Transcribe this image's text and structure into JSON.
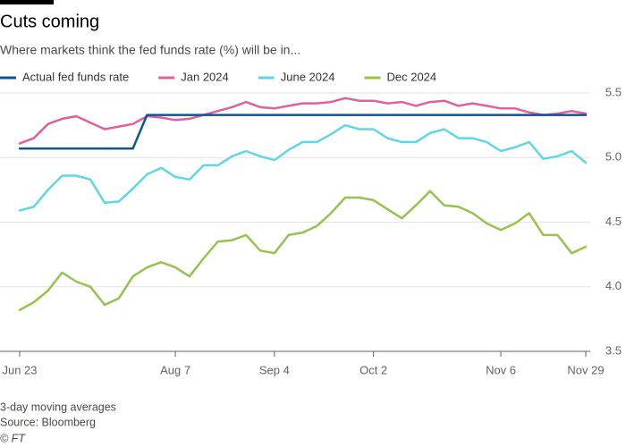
{
  "chart_data": {
    "type": "line",
    "title": "Cuts coming",
    "subtitle": "Where markets think the fed funds rate (%) will be in...",
    "notes": [
      "3-day moving averages",
      "Source: Bloomberg"
    ],
    "credit": "© FT",
    "categories": [
      "Jun 23",
      null,
      null,
      null,
      null,
      null,
      null,
      null,
      null,
      null,
      null,
      "Aug 7",
      null,
      null,
      null,
      null,
      null,
      null,
      "Sep 4",
      null,
      null,
      null,
      null,
      null,
      null,
      "Oct 2",
      null,
      null,
      null,
      null,
      null,
      null,
      null,
      null,
      "Nov 6",
      null,
      null,
      null,
      null,
      null,
      "Nov 29"
    ],
    "series": [
      {
        "name": "Actual fed funds rate",
        "color": "#0f5499",
        "values": [
          5.07,
          5.07,
          5.07,
          5.07,
          5.07,
          5.07,
          5.07,
          5.07,
          5.07,
          5.33,
          5.33,
          5.33,
          5.33,
          5.33,
          5.33,
          5.33,
          5.33,
          5.33,
          5.33,
          5.33,
          5.33,
          5.33,
          5.33,
          5.33,
          5.33,
          5.33,
          5.33,
          5.33,
          5.33,
          5.33,
          5.33,
          5.33,
          5.33,
          5.33,
          5.33,
          5.33,
          5.33,
          5.33,
          5.33,
          5.33,
          5.33
        ]
      },
      {
        "name": "Jan 2024",
        "color": "#e0609a",
        "values": [
          5.11,
          5.15,
          5.26,
          5.3,
          5.32,
          5.27,
          5.22,
          5.24,
          5.26,
          5.32,
          5.31,
          5.29,
          5.3,
          5.33,
          5.36,
          5.39,
          5.43,
          5.39,
          5.38,
          5.4,
          5.42,
          5.42,
          5.43,
          5.46,
          5.44,
          5.44,
          5.42,
          5.43,
          5.4,
          5.43,
          5.44,
          5.4,
          5.42,
          5.4,
          5.38,
          5.38,
          5.35,
          5.33,
          5.34,
          5.36,
          5.34
        ]
      },
      {
        "name": "June 2024",
        "color": "#5fd7e3",
        "values": [
          4.59,
          4.62,
          4.75,
          4.86,
          4.86,
          4.83,
          4.65,
          4.66,
          4.76,
          4.87,
          4.92,
          4.85,
          4.83,
          4.94,
          4.94,
          5.01,
          5.05,
          5.01,
          4.98,
          5.06,
          5.12,
          5.12,
          5.18,
          5.25,
          5.22,
          5.22,
          5.15,
          5.12,
          5.12,
          5.19,
          5.22,
          5.15,
          5.15,
          5.12,
          5.05,
          5.08,
          5.12,
          4.99,
          5.01,
          5.05,
          4.96
        ]
      },
      {
        "name": "Dec 2024",
        "color": "#96c24f",
        "values": [
          3.82,
          3.88,
          3.97,
          4.11,
          4.04,
          4.0,
          3.86,
          3.91,
          4.08,
          4.15,
          4.19,
          4.15,
          4.08,
          4.22,
          4.35,
          4.36,
          4.4,
          4.28,
          4.26,
          4.4,
          4.42,
          4.47,
          4.57,
          4.69,
          4.69,
          4.67,
          4.6,
          4.53,
          4.63,
          4.74,
          4.63,
          4.62,
          4.57,
          4.49,
          4.44,
          4.49,
          4.57,
          4.4,
          4.4,
          4.26,
          4.31
        ]
      }
    ],
    "ylim": [
      3.5,
      5.5
    ],
    "yticks": [
      5.5,
      {
        "value": 5,
        "label": "5.0"
      },
      4.5,
      {
        "value": 4,
        "label": "4.0"
      },
      3.5
    ],
    "grid": true
  }
}
